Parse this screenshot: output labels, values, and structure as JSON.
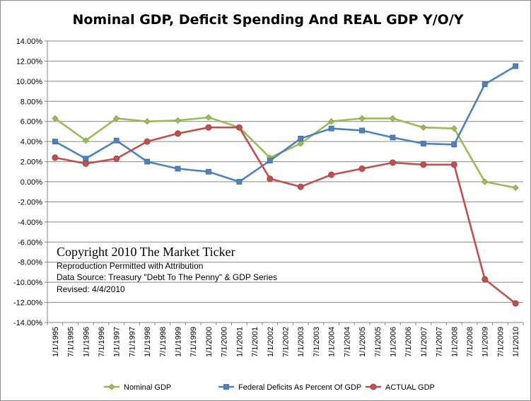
{
  "chart_data": {
    "type": "line",
    "title": "Nominal GDP, Deficit Spending And REAL GDP Y/O/Y",
    "xlabel": "",
    "ylabel": "",
    "ylim": [
      -14,
      14
    ],
    "yticks": [
      "14.00%",
      "12.00%",
      "10.00%",
      "8.00%",
      "6.00%",
      "4.00%",
      "2.00%",
      "0.00%",
      "-2.00%",
      "-4.00%",
      "-6.00%",
      "-8.00%",
      "-10.00%",
      "-12.00%",
      "-14.00%"
    ],
    "categories": [
      "1/1/1995",
      "7/1/1995",
      "1/1/1996",
      "7/1/1996",
      "1/1/1997",
      "7/1/1997",
      "1/1/1998",
      "7/1/1998",
      "1/1/1999",
      "7/1/1999",
      "1/1/2000",
      "7/1/2000",
      "1/1/2001",
      "7/1/2001",
      "1/1/2002",
      "7/1/2002",
      "1/1/2003",
      "7/1/2003",
      "1/1/2004",
      "7/1/2004",
      "1/1/2005",
      "7/1/2005",
      "1/1/2006",
      "7/1/2006",
      "1/1/2007",
      "7/1/2007",
      "1/1/2008",
      "7/1/2008",
      "1/1/2009",
      "7/1/2009",
      "1/1/2010"
    ],
    "grid": true,
    "legend_position": "bottom",
    "series": [
      {
        "name": "Nominal GDP",
        "color": "#9BBB59",
        "marker": "diamond",
        "x": [
          "1/1/1995",
          "1/1/1996",
          "1/1/1997",
          "1/1/1998",
          "1/1/1999",
          "1/1/2000",
          "1/1/2001",
          "1/1/2002",
          "1/1/2003",
          "1/1/2004",
          "1/1/2005",
          "1/1/2006",
          "1/1/2007",
          "1/1/2008",
          "1/1/2009",
          "1/1/2010"
        ],
        "values": [
          6.3,
          4.1,
          6.3,
          6.0,
          6.1,
          6.4,
          5.4,
          2.4,
          3.8,
          6.0,
          6.3,
          6.3,
          5.4,
          5.3,
          0.0,
          -0.6
        ]
      },
      {
        "name": "Federal Deficits As Percent Of GDP",
        "color": "#4F81BD",
        "marker": "square",
        "x": [
          "1/1/1995",
          "1/1/1996",
          "1/1/1997",
          "1/1/1998",
          "1/1/1999",
          "1/1/2000",
          "1/1/2001",
          "1/1/2002",
          "1/1/2003",
          "1/1/2004",
          "1/1/2005",
          "1/1/2006",
          "1/1/2007",
          "1/1/2008",
          "1/1/2009",
          "1/1/2010"
        ],
        "values": [
          4.0,
          2.3,
          4.1,
          2.0,
          1.3,
          1.0,
          0.0,
          2.1,
          4.3,
          5.3,
          5.1,
          4.4,
          3.8,
          3.7,
          9.7,
          11.5
        ]
      },
      {
        "name": "ACTUAL GDP",
        "color": "#C0504D",
        "marker": "circle",
        "x": [
          "1/1/1995",
          "1/1/1996",
          "1/1/1997",
          "1/1/1998",
          "1/1/1999",
          "1/1/2000",
          "1/1/2001",
          "1/1/2002",
          "1/1/2003",
          "1/1/2004",
          "1/1/2005",
          "1/1/2006",
          "1/1/2007",
          "1/1/2008",
          "1/1/2009",
          "1/1/2010"
        ],
        "values": [
          2.4,
          1.8,
          2.3,
          4.0,
          4.8,
          5.4,
          5.4,
          0.3,
          -0.5,
          0.7,
          1.3,
          1.9,
          1.7,
          1.7,
          -9.7,
          -12.1
        ]
      }
    ],
    "annotations": {
      "copyright": "Copyright 2010 The Market Ticker",
      "reproduction": "Reproduction Permitted with Attribution",
      "source": "Data Source:  Treasury \"Debt To The Penny\" & GDP Series",
      "revised": "Revised: 4/4/2010"
    }
  }
}
